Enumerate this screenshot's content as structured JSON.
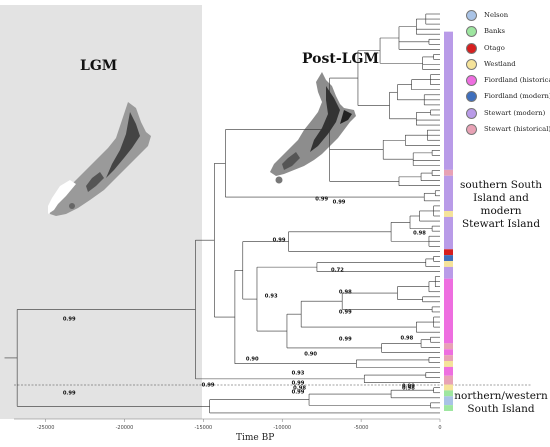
{
  "titles": {
    "lgm": "LGM",
    "post_lgm": "Post-LGM"
  },
  "x_axis": {
    "title": "Time BP",
    "ticks": [
      {
        "label": "-25000",
        "value": -25000
      },
      {
        "label": "-20000",
        "value": -20000
      },
      {
        "label": "-15000",
        "value": -15000
      },
      {
        "label": "-10000",
        "value": -10000
      },
      {
        "label": "-5000",
        "value": -5000
      },
      {
        "label": "0",
        "value": 0
      }
    ]
  },
  "lgm_period_shaded": true,
  "legend": [
    {
      "label": "Nelson",
      "color": "#a9c3e6"
    },
    {
      "label": "Banks",
      "color": "#9ee6a0"
    },
    {
      "label": "Otago",
      "color": "#d61f1f"
    },
    {
      "label": "Westland",
      "color": "#f5e39a"
    },
    {
      "label": "Fiordland (historical)",
      "color": "#ee6ee0"
    },
    {
      "label": "Fiordland (modern)",
      "color": "#3f6fbd"
    },
    {
      "label": "Stewart (modern)",
      "color": "#b99be8"
    },
    {
      "label": "Stewart (historical)",
      "color": "#e8a2b5"
    }
  ],
  "clade_labels": {
    "south": [
      "southern South",
      "Island and modern",
      "Stewart Island"
    ],
    "north": [
      "northern/western",
      "South Island"
    ]
  },
  "support_values": [
    {
      "value": "0.99",
      "t": -23500,
      "tip": 1
    },
    {
      "value": "0.99",
      "t": -7500,
      "tip": 2
    },
    {
      "value": "0.98",
      "t": -1300,
      "tip": 3
    },
    {
      "value": "0.99",
      "t": -10200,
      "tip": 4
    },
    {
      "value": "0.99",
      "t": -6400,
      "tip": 5
    },
    {
      "value": "0.72",
      "t": -6500,
      "tip": 6
    },
    {
      "value": "0.98",
      "t": -6000,
      "tip": 7
    },
    {
      "value": "0.93",
      "t": -10700,
      "tip": 8
    },
    {
      "value": "0.99",
      "t": -6000,
      "tip": 9
    },
    {
      "value": "0.99",
      "t": -6000,
      "tip": 10
    },
    {
      "value": "0.98",
      "t": -2100,
      "tip": 11
    },
    {
      "value": "0.90",
      "t": -11900,
      "tip": 12
    },
    {
      "value": "0.90",
      "t": -8200,
      "tip": 13
    },
    {
      "value": "0.93",
      "t": -9000,
      "tip": 14
    },
    {
      "value": "0.99",
      "t": -14700,
      "tip": 15
    },
    {
      "value": "0.99",
      "t": -9000,
      "tip": 16
    },
    {
      "value": "0.98",
      "t": -8900,
      "tip": 17
    },
    {
      "value": "0.99",
      "t": -23500,
      "tip": 18
    },
    {
      "value": "0.99",
      "t": -9000,
      "tip": 19
    },
    {
      "value": "0.99",
      "t": -2000,
      "tip": 20
    },
    {
      "value": "0.98",
      "t": -2000,
      "tip": 21
    }
  ]
}
